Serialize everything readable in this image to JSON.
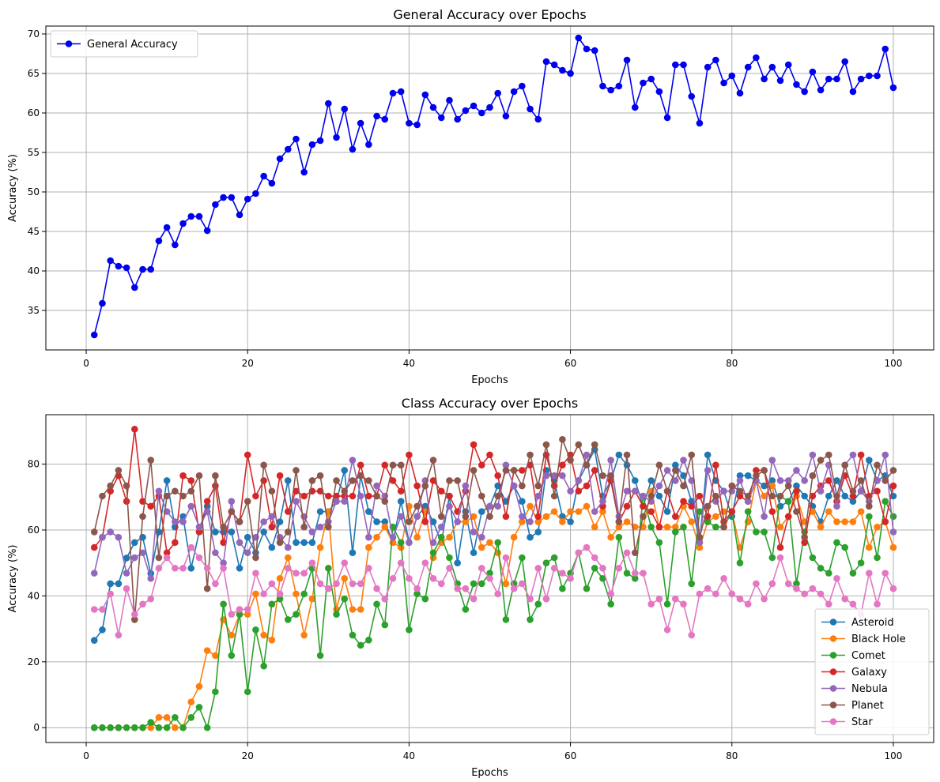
{
  "chart_data": [
    {
      "type": "line",
      "title": "General Accuracy over Epochs",
      "xlabel": "Epochs",
      "ylabel": "Accuracy (%)",
      "xlim": [
        -5,
        105
      ],
      "ylim": [
        30,
        71
      ],
      "xticks": [
        0,
        20,
        40,
        60,
        80,
        100
      ],
      "yticks": [
        35,
        40,
        45,
        50,
        55,
        60,
        65,
        70
      ],
      "grid": true,
      "legend": "upper-left",
      "x": [
        1,
        2,
        3,
        4,
        5,
        6,
        7,
        8,
        9,
        10,
        11,
        12,
        13,
        14,
        15,
        16,
        17,
        18,
        19,
        20,
        21,
        22,
        23,
        24,
        25,
        26,
        27,
        28,
        29,
        30,
        31,
        32,
        33,
        34,
        35,
        36,
        37,
        38,
        39,
        40,
        41,
        42,
        43,
        44,
        45,
        46,
        47,
        48,
        49,
        50,
        51,
        52,
        53,
        54,
        55,
        56,
        57,
        58,
        59,
        60,
        61,
        62,
        63,
        64,
        65,
        66,
        67,
        68,
        69,
        70,
        71,
        72,
        73,
        74,
        75,
        76,
        77,
        78,
        79,
        80,
        81,
        82,
        83,
        84,
        85,
        86,
        87,
        88,
        89,
        90,
        91,
        92,
        93,
        94,
        95,
        96,
        97,
        98,
        99,
        100
      ],
      "series": [
        {
          "name": "General Accuracy",
          "color": "#0000ee",
          "values": [
            31.9,
            35.9,
            41.3,
            40.6,
            40.4,
            37.9,
            40.2,
            40.2,
            43.8,
            45.5,
            43.3,
            46.0,
            46.9,
            46.9,
            45.1,
            48.4,
            49.3,
            49.3,
            47.1,
            49.1,
            49.8,
            52.0,
            51.1,
            54.2,
            55.4,
            56.7,
            52.5,
            56.0,
            56.5,
            61.2,
            56.9,
            60.5,
            55.4,
            58.7,
            56.0,
            59.6,
            59.2,
            62.5,
            62.7,
            58.7,
            58.5,
            62.3,
            60.7,
            59.4,
            61.6,
            59.2,
            60.3,
            60.9,
            60.0,
            60.7,
            62.5,
            59.6,
            62.7,
            63.4,
            60.5,
            59.2,
            66.5,
            66.1,
            65.4,
            65.0,
            69.5,
            68.1,
            67.9,
            63.4,
            62.9,
            63.4,
            66.7,
            60.7,
            63.8,
            64.3,
            62.7,
            59.4,
            66.1,
            66.1,
            62.1,
            58.7,
            65.8,
            66.7,
            63.8,
            64.7,
            62.5,
            65.8,
            67.0,
            64.3,
            65.8,
            64.1,
            66.1,
            63.6,
            62.7,
            65.2,
            62.9,
            64.3,
            64.3,
            66.5,
            62.7,
            64.3,
            64.7,
            64.7,
            68.1,
            63.2
          ]
        }
      ]
    },
    {
      "type": "line",
      "title": "Class Accuracy over Epochs",
      "xlabel": "Epochs",
      "ylabel": "Accuracy (%)",
      "xlim": [
        -5,
        105
      ],
      "ylim": [
        -4.5,
        95
      ],
      "xticks": [
        0,
        20,
        40,
        60,
        80,
        100
      ],
      "yticks": [
        0,
        20,
        40,
        60,
        80
      ],
      "grid": true,
      "legend": "lower-right",
      "x": [
        1,
        2,
        3,
        4,
        5,
        6,
        7,
        8,
        9,
        10,
        11,
        12,
        13,
        14,
        15,
        16,
        17,
        18,
        19,
        20,
        21,
        22,
        23,
        24,
        25,
        26,
        27,
        28,
        29,
        30,
        31,
        32,
        33,
        34,
        35,
        36,
        37,
        38,
        39,
        40,
        41,
        42,
        43,
        44,
        45,
        46,
        47,
        48,
        49,
        50,
        51,
        52,
        53,
        54,
        55,
        56,
        57,
        58,
        59,
        60,
        61,
        62,
        63,
        64,
        65,
        66,
        67,
        68,
        69,
        70,
        71,
        72,
        73,
        74,
        75,
        76,
        77,
        78,
        79,
        80,
        81,
        82,
        83,
        84,
        85,
        86,
        87,
        88,
        89,
        90,
        91,
        92,
        93,
        94,
        95,
        96,
        97,
        98,
        99,
        100
      ],
      "series": [
        {
          "name": "Asteroid",
          "color": "#1f77b4",
          "values": [
            26.5,
            29.7,
            43.7,
            43.7,
            51.5,
            56.2,
            57.8,
            46.8,
            59.4,
            75.0,
            60.9,
            64.1,
            48.4,
            59.4,
            67.2,
            59.4,
            59.4,
            59.4,
            48.4,
            57.8,
            53.1,
            59.4,
            54.7,
            62.5,
            75.0,
            56.2,
            56.2,
            56.2,
            65.6,
            65.6,
            68.7,
            78.1,
            53.1,
            76.5,
            65.6,
            62.5,
            62.5,
            56.2,
            68.7,
            56.2,
            64.1,
            67.2,
            62.5,
            56.2,
            70.3,
            50.0,
            65.6,
            53.1,
            65.6,
            67.2,
            73.4,
            68.7,
            73.4,
            68.7,
            57.8,
            59.4,
            78.1,
            75.0,
            64.1,
            62.5,
            75.0,
            79.7,
            84.4,
            70.3,
            75.0,
            82.8,
            79.7,
            75.0,
            67.2,
            75.0,
            70.3,
            65.6,
            79.7,
            76.5,
            68.7,
            56.2,
            82.8,
            75.0,
            71.8,
            64.1,
            76.5,
            76.5,
            75.0,
            73.4,
            75.0,
            67.2,
            68.7,
            73.4,
            70.3,
            67.2,
            62.5,
            70.3,
            75.0,
            70.3,
            68.7,
            71.8,
            81.2,
            75.0,
            76.5,
            70.3
          ]
        },
        {
          "name": "Black Hole",
          "color": "#ff7f0e",
          "values": [
            0,
            0,
            0,
            0,
            0,
            0,
            0,
            0,
            3.1,
            3.1,
            0,
            0,
            7.8,
            12.5,
            23.4,
            21.9,
            32.8,
            28.1,
            34.4,
            34.4,
            40.6,
            28.1,
            26.6,
            45.3,
            51.6,
            40.6,
            28.1,
            39.1,
            54.7,
            65.6,
            35.9,
            45.3,
            35.9,
            35.9,
            54.7,
            57.8,
            60.9,
            56.2,
            54.7,
            67.2,
            57.8,
            65.6,
            51.6,
            56.2,
            57.8,
            62.5,
            62.5,
            64.1,
            54.7,
            56.2,
            53.1,
            43.7,
            57.8,
            62.5,
            67.2,
            62.5,
            64.1,
            65.6,
            62.5,
            65.6,
            65.6,
            67.2,
            60.9,
            65.6,
            57.8,
            60.9,
            62.5,
            60.9,
            60.9,
            71.8,
            60.9,
            60.9,
            60.9,
            67.2,
            62.5,
            54.7,
            62.5,
            64.1,
            65.6,
            65.6,
            54.7,
            62.5,
            75.0,
            70.3,
            73.4,
            60.9,
            64.1,
            70.3,
            62.5,
            65.6,
            60.9,
            65.6,
            62.5,
            62.5,
            62.5,
            65.6,
            54.7,
            60.9,
            62.5,
            54.7
          ]
        },
        {
          "name": "Comet",
          "color": "#2ca02c",
          "values": [
            0,
            0,
            0,
            0,
            0,
            0,
            0,
            1.6,
            0,
            0,
            3.1,
            0,
            3.1,
            6.2,
            0,
            10.9,
            37.5,
            21.9,
            34.4,
            10.9,
            29.7,
            18.7,
            37.5,
            39.1,
            32.8,
            34.4,
            40.6,
            48.4,
            21.9,
            48.4,
            34.4,
            39.1,
            28.1,
            25.0,
            26.6,
            37.5,
            31.2,
            60.9,
            56.2,
            29.7,
            40.6,
            39.1,
            53.1,
            57.8,
            51.6,
            43.7,
            35.9,
            43.7,
            43.7,
            46.9,
            56.2,
            32.8,
            43.7,
            51.6,
            32.8,
            37.5,
            50.0,
            51.6,
            42.2,
            46.9,
            53.1,
            42.2,
            48.4,
            45.3,
            37.5,
            57.8,
            46.9,
            45.3,
            70.3,
            60.9,
            56.2,
            37.5,
            59.4,
            60.9,
            43.7,
            65.6,
            62.5,
            60.9,
            60.9,
            65.6,
            50.0,
            65.6,
            59.4,
            59.4,
            51.6,
            70.3,
            68.7,
            43.7,
            59.4,
            51.6,
            48.4,
            46.9,
            56.2,
            54.7,
            46.9,
            50.0,
            64.1,
            51.6,
            68.7,
            64.1
          ]
        },
        {
          "name": "Galaxy",
          "color": "#d62728",
          "values": [
            54.7,
            57.8,
            71.8,
            76.5,
            68.7,
            90.6,
            68.7,
            67.2,
            70.3,
            53.1,
            56.2,
            76.5,
            75.0,
            59.4,
            68.7,
            73.4,
            56.2,
            65.6,
            62.5,
            82.8,
            70.3,
            75.0,
            60.9,
            76.5,
            65.6,
            71.8,
            70.3,
            71.8,
            71.8,
            70.3,
            70.3,
            70.3,
            70.3,
            79.7,
            70.3,
            70.3,
            79.7,
            75.0,
            71.8,
            82.8,
            73.4,
            62.5,
            75.0,
            71.8,
            70.3,
            65.6,
            71.8,
            85.9,
            79.7,
            82.8,
            76.5,
            64.1,
            78.1,
            78.1,
            79.7,
            64.1,
            82.8,
            73.4,
            79.7,
            82.8,
            71.8,
            73.4,
            78.1,
            67.2,
            75.0,
            62.5,
            67.2,
            71.8,
            67.2,
            65.6,
            60.9,
            71.8,
            64.1,
            68.7,
            67.2,
            70.3,
            64.1,
            79.7,
            62.5,
            65.6,
            70.3,
            68.7,
            78.1,
            78.1,
            65.6,
            54.7,
            64.1,
            71.8,
            56.2,
            70.3,
            73.4,
            75.0,
            68.7,
            76.5,
            70.3,
            82.8,
            70.3,
            71.8,
            62.5,
            73.4
          ]
        },
        {
          "name": "Nebula",
          "color": "#9467bd",
          "values": [
            46.9,
            57.8,
            59.4,
            57.8,
            46.9,
            51.6,
            53.1,
            45.3,
            71.8,
            65.6,
            62.5,
            62.5,
            67.2,
            60.9,
            65.6,
            53.1,
            50.0,
            68.7,
            56.2,
            53.1,
            57.8,
            62.5,
            64.1,
            57.8,
            54.7,
            68.7,
            64.1,
            59.4,
            60.9,
            62.5,
            68.7,
            68.7,
            81.2,
            70.3,
            57.8,
            73.4,
            70.3,
            57.8,
            64.1,
            56.2,
            64.1,
            75.0,
            56.2,
            60.9,
            67.2,
            62.5,
            73.4,
            59.4,
            57.8,
            67.2,
            67.2,
            79.7,
            73.4,
            64.1,
            62.5,
            70.3,
            76.5,
            76.5,
            76.5,
            71.8,
            75.0,
            82.8,
            65.6,
            68.7,
            81.2,
            64.1,
            71.8,
            71.8,
            70.3,
            68.7,
            73.4,
            78.1,
            75.0,
            81.2,
            75.0,
            56.2,
            78.1,
            68.7,
            71.8,
            71.8,
            75.0,
            68.7,
            75.0,
            64.1,
            81.2,
            75.0,
            75.0,
            78.1,
            75.0,
            82.8,
            71.8,
            79.7,
            67.2,
            79.7,
            82.8,
            71.8,
            68.7,
            75.0,
            82.8,
            59.4
          ]
        },
        {
          "name": "Planet",
          "color": "#8c564b",
          "values": [
            59.4,
            70.3,
            73.4,
            78.1,
            73.4,
            32.8,
            64.1,
            81.2,
            51.6,
            70.3,
            71.8,
            70.3,
            71.8,
            76.5,
            42.2,
            76.5,
            60.9,
            65.6,
            62.5,
            68.7,
            51.6,
            79.7,
            71.8,
            56.2,
            59.4,
            78.1,
            60.9,
            75.0,
            76.5,
            60.9,
            75.0,
            71.8,
            75.0,
            76.5,
            75.0,
            70.3,
            68.7,
            79.7,
            79.7,
            62.5,
            67.2,
            73.4,
            81.2,
            64.1,
            75.0,
            75.0,
            64.1,
            78.1,
            70.3,
            64.1,
            70.3,
            78.1,
            78.1,
            73.4,
            82.8,
            73.4,
            85.9,
            70.3,
            87.5,
            81.2,
            85.9,
            79.7,
            85.9,
            76.5,
            76.5,
            62.5,
            82.8,
            53.1,
            64.1,
            70.3,
            79.7,
            71.8,
            78.1,
            73.4,
            82.8,
            57.8,
            67.2,
            70.3,
            60.9,
            73.4,
            71.8,
            70.3,
            76.5,
            78.1,
            70.3,
            70.3,
            73.4,
            65.6,
            57.8,
            76.5,
            81.2,
            82.8,
            70.3,
            79.7,
            71.8,
            75.0,
            67.2,
            79.7,
            75.0,
            78.1
          ]
        },
        {
          "name": "Star",
          "color": "#e377c2",
          "values": [
            35.9,
            35.9,
            40.6,
            28.1,
            42.2,
            34.4,
            37.5,
            39.1,
            48.4,
            51.6,
            48.4,
            48.4,
            54.7,
            51.6,
            48.4,
            43.7,
            48.4,
            34.4,
            35.9,
            35.9,
            46.9,
            40.6,
            43.7,
            40.6,
            48.4,
            46.9,
            46.9,
            50.0,
            43.7,
            42.2,
            43.7,
            50.0,
            43.7,
            43.7,
            48.4,
            42.2,
            39.1,
            45.3,
            50.0,
            45.3,
            42.2,
            50.0,
            45.3,
            43.7,
            48.4,
            42.2,
            42.2,
            39.1,
            48.4,
            45.3,
            40.6,
            51.6,
            42.2,
            43.7,
            39.1,
            48.4,
            39.1,
            48.4,
            46.9,
            45.3,
            53.1,
            54.7,
            51.6,
            48.4,
            40.6,
            48.4,
            53.1,
            46.9,
            46.9,
            37.5,
            39.1,
            29.7,
            39.1,
            37.5,
            28.1,
            40.6,
            42.2,
            40.6,
            45.3,
            40.6,
            39.1,
            37.5,
            43.7,
            39.1,
            43.7,
            51.6,
            43.7,
            42.2,
            40.6,
            42.2,
            40.6,
            37.5,
            45.3,
            39.1,
            37.5,
            34.4,
            46.9,
            37.5,
            46.9,
            42.2
          ]
        }
      ]
    }
  ]
}
